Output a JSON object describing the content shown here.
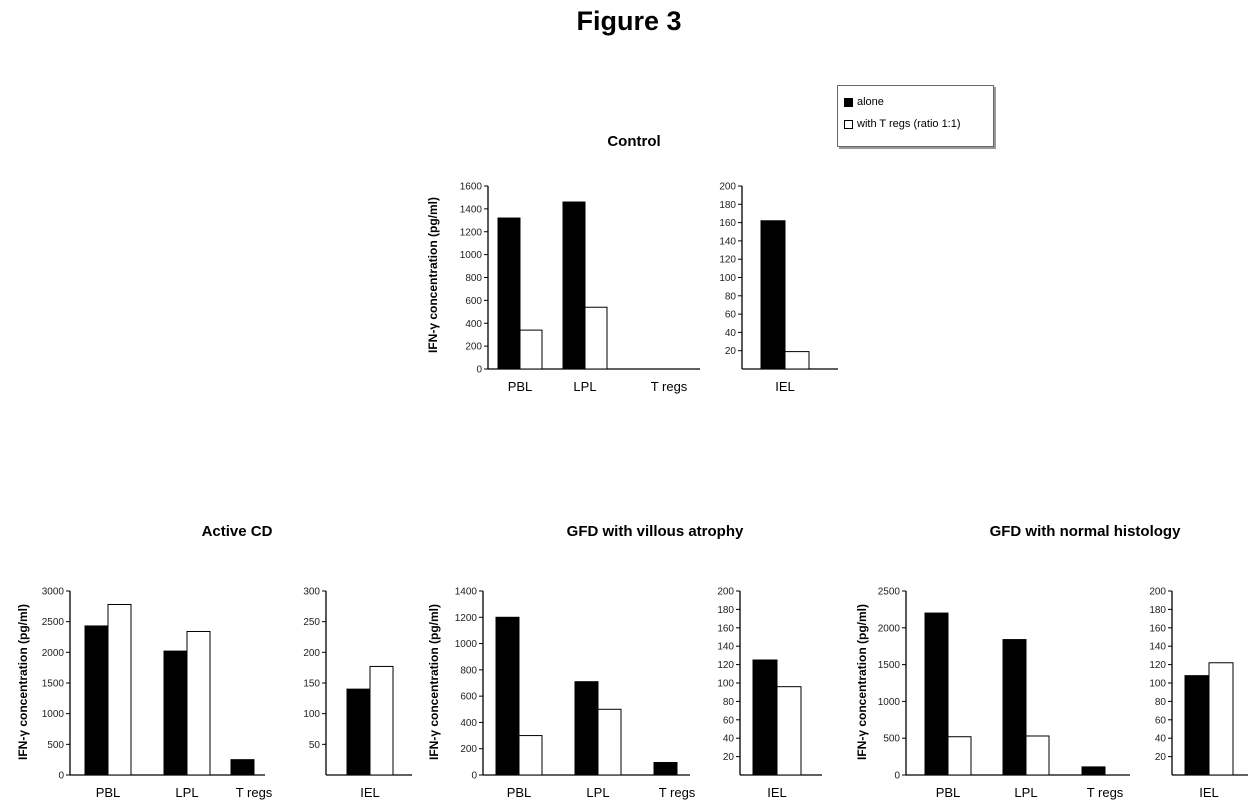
{
  "figure_title": "Figure 3",
  "legend": {
    "items": [
      {
        "label": "alone",
        "color": "#000000"
      },
      {
        "label": "with T regs (ratio 1:1)",
        "color": "#ffffff"
      }
    ]
  },
  "chart_data": [
    {
      "type": "bar",
      "title": "Control",
      "ylabel": "IFN-γ concentration (pg/ml)",
      "categories": [
        "PBL",
        "LPL",
        "T regs",
        "IEL"
      ],
      "left_panel": {
        "categories": [
          "PBL",
          "LPL",
          "T regs"
        ],
        "ylim": [
          0,
          1600
        ],
        "yticks": [
          0,
          200,
          400,
          600,
          800,
          1000,
          1200,
          1400,
          1600
        ],
        "series": [
          {
            "name": "alone",
            "values": [
              1320,
              1460,
              0
            ]
          },
          {
            "name": "with T regs (ratio 1:1)",
            "values": [
              340,
              540,
              0
            ]
          }
        ]
      },
      "right_panel": {
        "categories": [
          "IEL"
        ],
        "ylim": [
          0,
          200
        ],
        "yticks": [
          20,
          40,
          60,
          80,
          100,
          120,
          140,
          160,
          180,
          200
        ],
        "series": [
          {
            "name": "alone",
            "values": [
              162
            ]
          },
          {
            "name": "with T regs (ratio 1:1)",
            "values": [
              19
            ]
          }
        ]
      }
    },
    {
      "type": "bar",
      "title": "Active CD",
      "ylabel": "IFN-γ concentration (pg/ml)",
      "categories": [
        "PBL",
        "LPL",
        "T regs",
        "IEL"
      ],
      "left_panel": {
        "categories": [
          "PBL",
          "LPL",
          "T regs"
        ],
        "ylim": [
          0,
          3000
        ],
        "yticks": [
          0,
          500,
          1000,
          1500,
          2000,
          2500,
          3000
        ],
        "series": [
          {
            "name": "alone",
            "values": [
              2430,
              2020,
              250
            ]
          },
          {
            "name": "with T regs (ratio 1:1)",
            "values": [
              2780,
              2340,
              0
            ]
          }
        ]
      },
      "right_panel": {
        "categories": [
          "IEL"
        ],
        "ylim": [
          0,
          300
        ],
        "yticks": [
          50,
          100,
          150,
          200,
          250,
          300
        ],
        "series": [
          {
            "name": "alone",
            "values": [
              140
            ]
          },
          {
            "name": "with T regs (ratio 1:1)",
            "values": [
              177
            ]
          }
        ]
      }
    },
    {
      "type": "bar",
      "title": "GFD with villous atrophy",
      "ylabel": "IFN-γ concentration (pg/ml)",
      "categories": [
        "PBL",
        "LPL",
        "T regs",
        "IEL"
      ],
      "left_panel": {
        "categories": [
          "PBL",
          "LPL",
          "T regs"
        ],
        "ylim": [
          0,
          1400
        ],
        "yticks": [
          0,
          200,
          400,
          600,
          800,
          1000,
          1200,
          1400
        ],
        "series": [
          {
            "name": "alone",
            "values": [
              1200,
              710,
              95
            ]
          },
          {
            "name": "with T regs (ratio 1:1)",
            "values": [
              300,
              500,
              0
            ]
          }
        ]
      },
      "right_panel": {
        "categories": [
          "IEL"
        ],
        "ylim": [
          0,
          200
        ],
        "yticks": [
          20,
          40,
          60,
          80,
          100,
          120,
          140,
          160,
          180,
          200
        ],
        "series": [
          {
            "name": "alone",
            "values": [
              125
            ]
          },
          {
            "name": "with T regs (ratio 1:1)",
            "values": [
              96
            ]
          }
        ]
      }
    },
    {
      "type": "bar",
      "title": "GFD with normal histology",
      "ylabel": "IFN-γ concentration (pg/ml)",
      "categories": [
        "PBL",
        "LPL",
        "T regs",
        "IEL"
      ],
      "left_panel": {
        "categories": [
          "PBL",
          "LPL",
          "T regs"
        ],
        "ylim": [
          0,
          2500
        ],
        "yticks": [
          0,
          500,
          1000,
          1500,
          2000,
          2500
        ],
        "series": [
          {
            "name": "alone",
            "values": [
              2200,
              1840,
              110
            ]
          },
          {
            "name": "with T regs (ratio 1:1)",
            "values": [
              520,
              530,
              0
            ]
          }
        ]
      },
      "right_panel": {
        "categories": [
          "IEL"
        ],
        "ylim": [
          0,
          200
        ],
        "yticks": [
          20,
          40,
          60,
          80,
          100,
          120,
          140,
          160,
          180,
          200
        ],
        "series": [
          {
            "name": "alone",
            "values": [
              108
            ]
          },
          {
            "name": "with T regs (ratio 1:1)",
            "values": [
              122
            ]
          }
        ]
      }
    }
  ]
}
